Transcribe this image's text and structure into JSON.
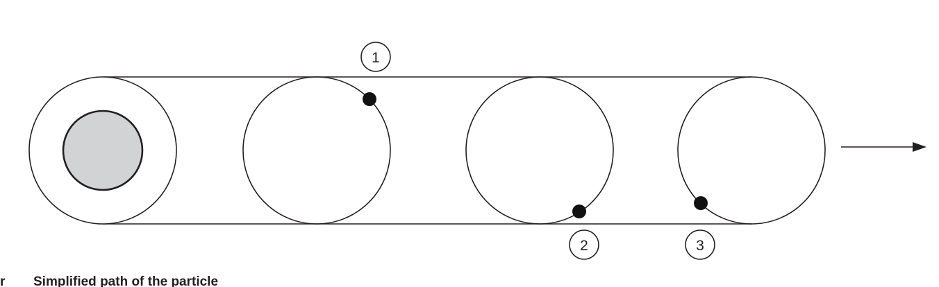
{
  "markers": [
    {
      "id": "1",
      "label": "1"
    },
    {
      "id": "2",
      "label": "2"
    },
    {
      "id": "3",
      "label": "3"
    }
  ],
  "caption": {
    "prefix": "r",
    "text": "Simplified path of the particle"
  },
  "colors": {
    "stroke": "#231f20",
    "roller_fill": "#d1d3d4",
    "particle": "#111111",
    "background": "#ffffff"
  }
}
